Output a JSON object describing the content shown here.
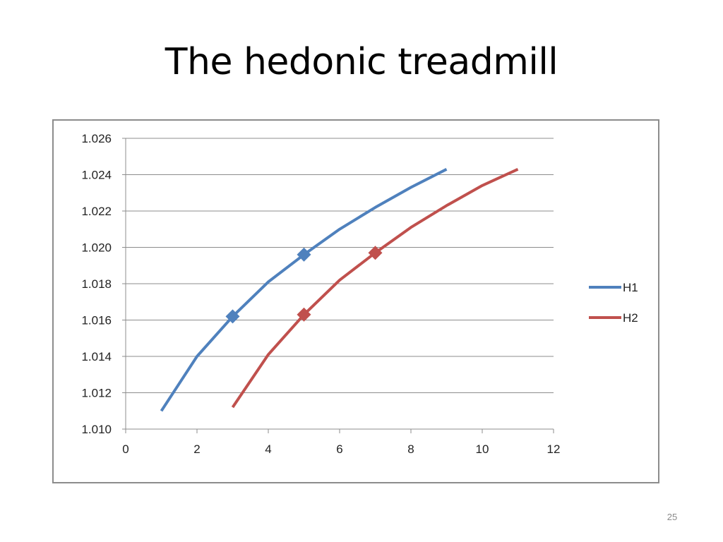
{
  "slide": {
    "title": "The hedonic treadmill",
    "page_number": "25"
  },
  "chart_data": {
    "type": "line",
    "title": "",
    "xlabel": "",
    "ylabel": "",
    "xlim": [
      0,
      12
    ],
    "ylim": [
      1.01,
      1.026
    ],
    "x_ticks": [
      0,
      2,
      4,
      6,
      8,
      10,
      12
    ],
    "y_ticks": [
      1.01,
      1.012,
      1.014,
      1.016,
      1.018,
      1.02,
      1.022,
      1.024,
      1.026
    ],
    "y_tick_labels": [
      "1.010",
      "1.012",
      "1.014",
      "1.016",
      "1.018",
      "1.020",
      "1.022",
      "1.024",
      "1.026"
    ],
    "x_tick_labels": [
      "0",
      "2",
      "4",
      "6",
      "8",
      "10",
      "12"
    ],
    "grid": "horizontal",
    "legend_position": "right",
    "series": [
      {
        "name": "H1",
        "color": "#4f81bd",
        "x": [
          1,
          2,
          3,
          4,
          5,
          6,
          7,
          8,
          9
        ],
        "y": [
          1.011,
          1.014,
          1.0162,
          1.0181,
          1.0196,
          1.021,
          1.0222,
          1.0233,
          1.0243
        ],
        "markers": [
          {
            "x": 3,
            "y": 1.0162
          },
          {
            "x": 5,
            "y": 1.0196
          }
        ]
      },
      {
        "name": "H2",
        "color": "#c0504d",
        "x": [
          3,
          4,
          5,
          6,
          7,
          8,
          9,
          10,
          11
        ],
        "y": [
          1.0112,
          1.0141,
          1.0163,
          1.0182,
          1.0197,
          1.0211,
          1.0223,
          1.0234,
          1.0243
        ],
        "markers": [
          {
            "x": 5,
            "y": 1.0163
          },
          {
            "x": 7,
            "y": 1.0197
          }
        ]
      }
    ]
  }
}
